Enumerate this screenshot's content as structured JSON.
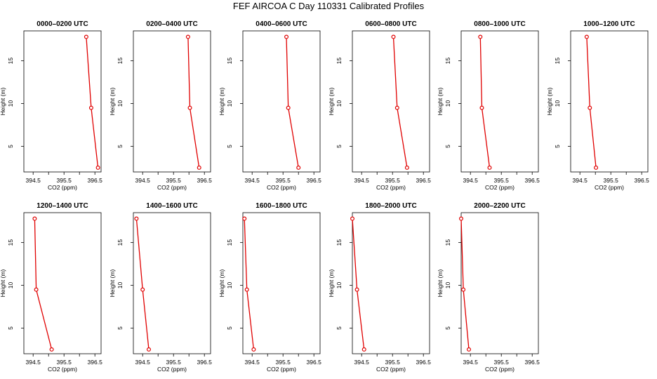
{
  "title": "FEF AIRCOA C  Day 110331  Calibrated Profiles",
  "colors": {
    "series": "#e00000",
    "axis": "#000000"
  },
  "chart_data": {
    "type": "line",
    "xlabel": "CO2 (ppm)",
    "ylabel": "Height (m)",
    "xlim": [
      394.2,
      396.7
    ],
    "ylim": [
      2,
      18.5
    ],
    "xticks": [
      394.5,
      395,
      395.5,
      396,
      396.5
    ],
    "xtick_labels": [
      "394.5",
      "395.5",
      "396.5"
    ],
    "yticks": [
      5,
      10,
      15
    ],
    "ytick_labels": [
      "5",
      "10",
      "15"
    ],
    "heights": [
      17.8,
      9.5,
      2.5
    ],
    "panels": [
      {
        "title": "0000–0200 UTC",
        "co2": [
          396.22,
          396.38,
          396.6
        ]
      },
      {
        "title": "0200–0400 UTC",
        "co2": [
          395.97,
          396.03,
          396.33
        ]
      },
      {
        "title": "0400–0600 UTC",
        "co2": [
          395.61,
          395.67,
          396.0
        ]
      },
      {
        "title": "0600–0800 UTC",
        "co2": [
          395.53,
          395.65,
          395.97
        ]
      },
      {
        "title": "0800–1000 UTC",
        "co2": [
          394.82,
          394.87,
          395.12
        ]
      },
      {
        "title": "1000–1200 UTC",
        "co2": [
          394.72,
          394.82,
          395.02
        ]
      },
      {
        "title": "1200–1400 UTC",
        "co2": [
          394.55,
          394.6,
          395.1
        ]
      },
      {
        "title": "1400–1600 UTC",
        "co2": [
          394.3,
          394.5,
          394.7
        ]
      },
      {
        "title": "1600–1800 UTC",
        "co2": [
          394.25,
          394.33,
          394.55
        ]
      },
      {
        "title": "1800–2000 UTC",
        "co2": [
          394.2,
          394.35,
          394.58
        ]
      },
      {
        "title": "2000–2200 UTC",
        "co2": [
          394.2,
          394.27,
          394.45
        ]
      }
    ]
  }
}
